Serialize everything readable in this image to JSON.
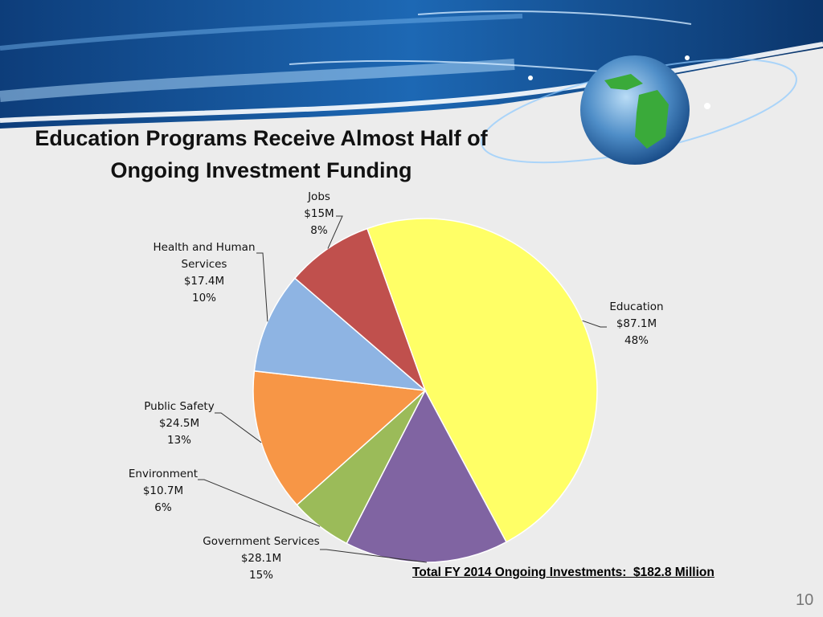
{
  "slide": {
    "title_line1": "Education Programs Receive Almost Half of",
    "title_line2": "Ongoing Investment Funding",
    "total_note": "Total FY 2014 Ongoing Investments:  $182.8 Million",
    "page_number": "10"
  },
  "colors": {
    "Education": "#ffff66",
    "Government Services": "#8064a2",
    "Environment": "#9bbb59",
    "Public Safety": "#f79646",
    "Health and Human Services": "#8eb4e3",
    "Jobs": "#c0504d"
  },
  "chart_data": {
    "type": "pie",
    "title": "",
    "start_category": "Education",
    "direction": "clockwise",
    "slices": [
      {
        "category": "Education",
        "label_lines": [
          "Education",
          "$87.1M",
          "48%"
        ],
        "value": 87.1,
        "percent": 48
      },
      {
        "category": "Government Services",
        "label_lines": [
          "Government Services",
          "$28.1M",
          "15%"
        ],
        "value": 28.1,
        "percent": 15
      },
      {
        "category": "Environment",
        "label_lines": [
          "Environment",
          "$10.7M",
          "6%"
        ],
        "value": 10.7,
        "percent": 6
      },
      {
        "category": "Public Safety",
        "label_lines": [
          "Public Safety",
          "$24.5M",
          "13%"
        ],
        "value": 24.5,
        "percent": 13
      },
      {
        "category": "Health and Human Services",
        "label_lines": [
          "Health and Human",
          "Services",
          "$17.4M",
          "10%"
        ],
        "value": 17.4,
        "percent": 10
      },
      {
        "category": "Jobs",
        "label_lines": [
          "Jobs",
          "$15M",
          "8%"
        ],
        "value": 15.0,
        "percent": 8
      }
    ]
  }
}
